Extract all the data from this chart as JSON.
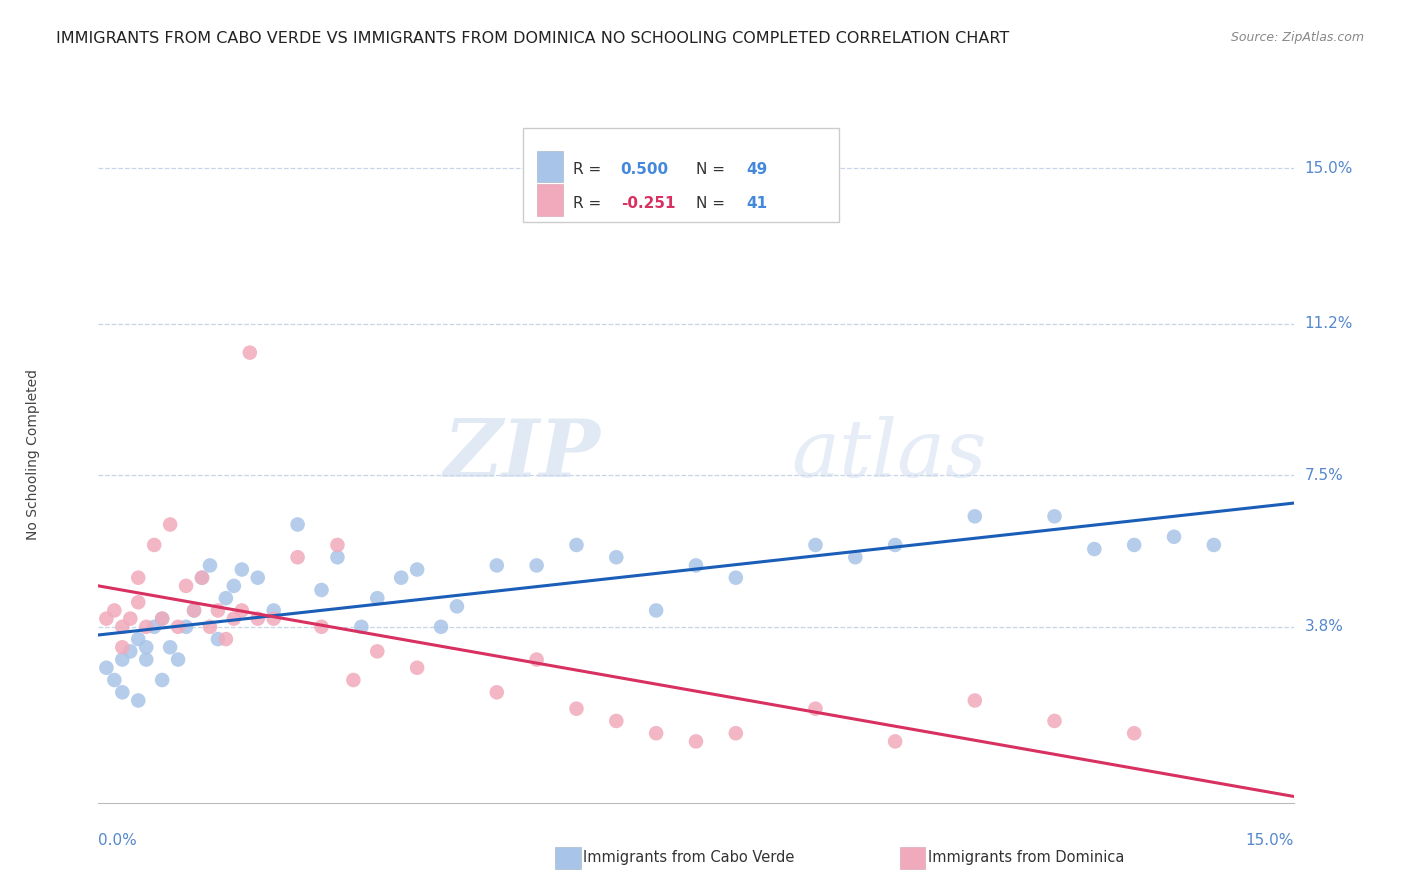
{
  "title": "IMMIGRANTS FROM CABO VERDE VS IMMIGRANTS FROM DOMINICA NO SCHOOLING COMPLETED CORRELATION CHART",
  "source": "Source: ZipAtlas.com",
  "ylabel": "No Schooling Completed",
  "ytick_labels": [
    "15.0%",
    "11.2%",
    "7.5%",
    "3.8%"
  ],
  "ytick_vals": [
    0.15,
    0.112,
    0.075,
    0.038
  ],
  "xmin": 0.0,
  "xmax": 0.15,
  "ymin": -0.005,
  "ymax": 0.165,
  "cabo_verde_color": "#a8c4e8",
  "dominica_color": "#f0aabb",
  "cabo_verde_line_color": "#1a5eb8",
  "dominica_line_color": "#d83060",
  "cabo_verde_x": [
    0.001,
    0.002,
    0.003,
    0.003,
    0.004,
    0.005,
    0.005,
    0.006,
    0.006,
    0.007,
    0.008,
    0.008,
    0.009,
    0.01,
    0.011,
    0.012,
    0.013,
    0.014,
    0.015,
    0.016,
    0.017,
    0.018,
    0.02,
    0.022,
    0.025,
    0.028,
    0.03,
    0.033,
    0.035,
    0.038,
    0.04,
    0.043,
    0.045,
    0.05,
    0.055,
    0.06,
    0.065,
    0.07,
    0.075,
    0.08,
    0.09,
    0.095,
    0.1,
    0.11,
    0.12,
    0.125,
    0.13,
    0.135,
    0.14
  ],
  "cabo_verde_y": [
    0.028,
    0.025,
    0.022,
    0.03,
    0.032,
    0.02,
    0.035,
    0.03,
    0.033,
    0.038,
    0.025,
    0.04,
    0.033,
    0.03,
    0.038,
    0.042,
    0.05,
    0.053,
    0.035,
    0.045,
    0.048,
    0.052,
    0.05,
    0.042,
    0.063,
    0.047,
    0.055,
    0.038,
    0.045,
    0.05,
    0.052,
    0.038,
    0.043,
    0.053,
    0.053,
    0.058,
    0.055,
    0.042,
    0.053,
    0.05,
    0.058,
    0.055,
    0.058,
    0.065,
    0.065,
    0.057,
    0.058,
    0.06,
    0.058
  ],
  "dominica_x": [
    0.001,
    0.002,
    0.003,
    0.003,
    0.004,
    0.005,
    0.005,
    0.006,
    0.007,
    0.008,
    0.009,
    0.01,
    0.011,
    0.012,
    0.013,
    0.014,
    0.015,
    0.016,
    0.017,
    0.018,
    0.019,
    0.02,
    0.022,
    0.025,
    0.028,
    0.03,
    0.032,
    0.035,
    0.04,
    0.05,
    0.055,
    0.06,
    0.065,
    0.07,
    0.075,
    0.08,
    0.09,
    0.1,
    0.11,
    0.12,
    0.13
  ],
  "dominica_y": [
    0.04,
    0.042,
    0.038,
    0.033,
    0.04,
    0.044,
    0.05,
    0.038,
    0.058,
    0.04,
    0.063,
    0.038,
    0.048,
    0.042,
    0.05,
    0.038,
    0.042,
    0.035,
    0.04,
    0.042,
    0.105,
    0.04,
    0.04,
    0.055,
    0.038,
    0.058,
    0.025,
    0.032,
    0.028,
    0.022,
    0.03,
    0.018,
    0.015,
    0.012,
    0.01,
    0.012,
    0.018,
    0.01,
    0.02,
    0.015,
    0.012
  ],
  "watermark_zip": "ZIP",
  "watermark_atlas": "atlas",
  "background_color": "#ffffff",
  "grid_color": "#c8d4e8",
  "title_fontsize": 11.5,
  "source_fontsize": 9,
  "tick_color": "#5588cc",
  "tick_fontsize": 11
}
